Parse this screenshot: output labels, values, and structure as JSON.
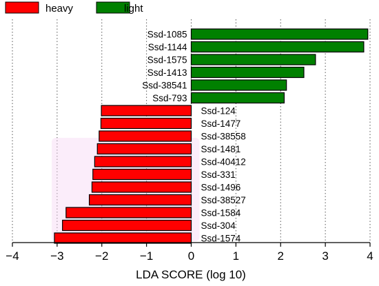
{
  "chart_data": {
    "type": "bar",
    "orientation": "horizontal",
    "title": "",
    "xlabel": "LDA SCORE (log 10)",
    "ylabel": "",
    "xlim": [
      -4,
      4
    ],
    "xticks": [
      "−4",
      "−3",
      "−2",
      "−1",
      "0",
      "1",
      "2",
      "3",
      "4"
    ],
    "grid": "vertical dotted lines",
    "legend_position": "top-left",
    "series": [
      {
        "name": "heavy",
        "color": "#ff0000"
      },
      {
        "name": "light",
        "color": "#008000"
      }
    ],
    "bars": [
      {
        "label": "Ssd-1085",
        "value": 3.95,
        "group": "light"
      },
      {
        "label": "Ssd-1144",
        "value": 3.86,
        "group": "light"
      },
      {
        "label": "Ssd-1575",
        "value": 2.78,
        "group": "light"
      },
      {
        "label": "Ssd-1413",
        "value": 2.52,
        "group": "light"
      },
      {
        "label": "Ssd-38541",
        "value": 2.13,
        "group": "light"
      },
      {
        "label": "Ssd-793",
        "value": 2.08,
        "group": "light"
      },
      {
        "label": "Ssd-124",
        "value": -2.01,
        "group": "heavy"
      },
      {
        "label": "Ssd-1477",
        "value": -2.02,
        "group": "heavy"
      },
      {
        "label": "Ssd-38558",
        "value": -2.06,
        "group": "heavy"
      },
      {
        "label": "Ssd-1481",
        "value": -2.1,
        "group": "heavy"
      },
      {
        "label": "Ssd-40412",
        "value": -2.16,
        "group": "heavy"
      },
      {
        "label": "Ssd-331",
        "value": -2.2,
        "group": "heavy"
      },
      {
        "label": "Ssd-1496",
        "value": -2.22,
        "group": "heavy"
      },
      {
        "label": "Ssd-38527",
        "value": -2.28,
        "group": "heavy"
      },
      {
        "label": "Ssd-1584",
        "value": -2.8,
        "group": "heavy"
      },
      {
        "label": "Ssd-304",
        "value": -2.88,
        "group": "heavy"
      },
      {
        "label": "Ssd-1574",
        "value": -3.06,
        "group": "heavy"
      }
    ]
  }
}
